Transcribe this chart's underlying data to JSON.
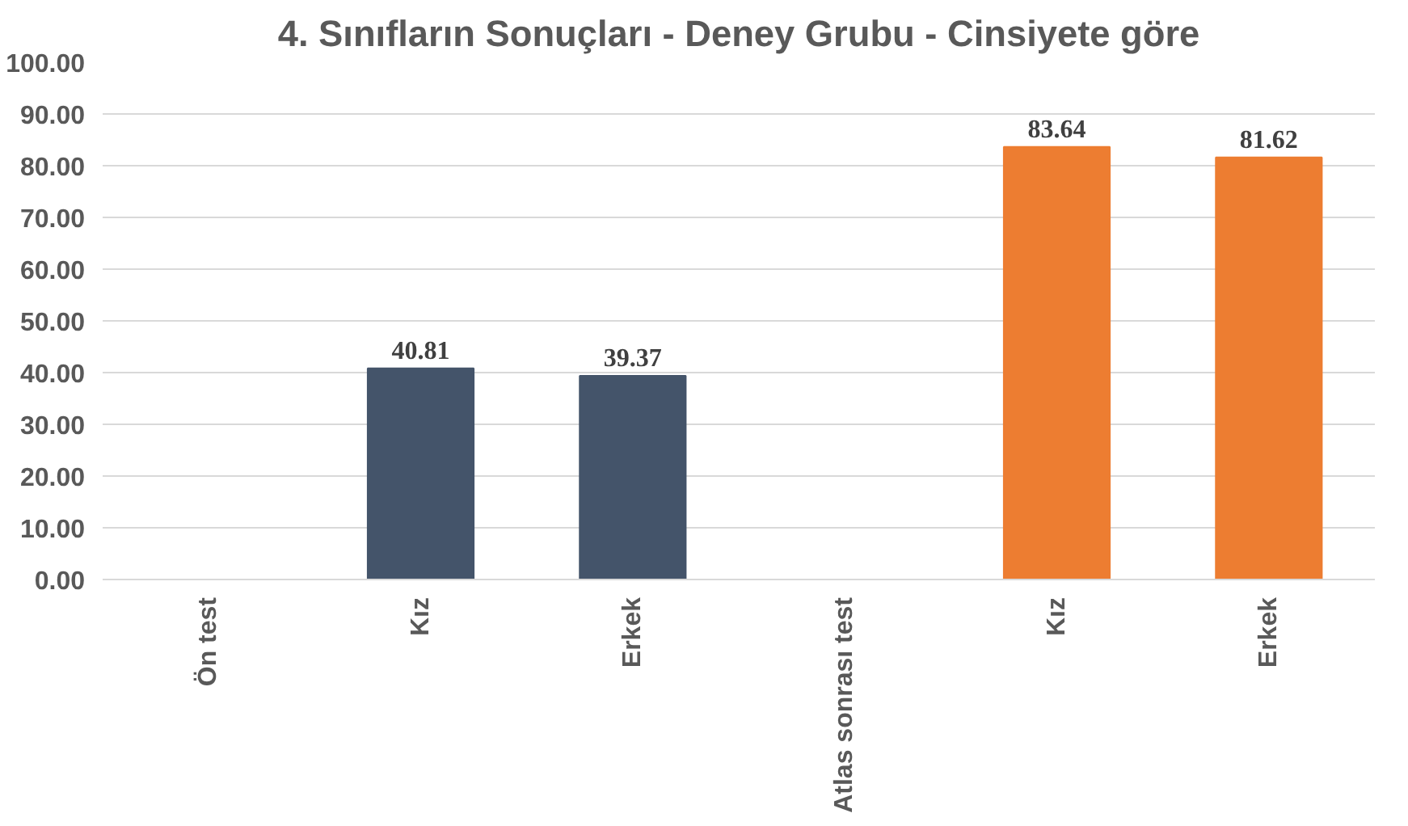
{
  "chart_data": {
    "type": "bar",
    "title": "4. Sınıfların Sonuçları - Deney Grubu - Cinsiyete göre",
    "categories": [
      "Ön test",
      "Kız",
      "Erkek",
      "Atlas sonrası test",
      "Kız",
      "Erkek"
    ],
    "values": [
      null,
      40.81,
      39.37,
      null,
      83.64,
      81.62
    ],
    "colors": [
      "#44546a",
      "#44546a",
      "#44546a",
      "#ed7d31",
      "#ed7d31",
      "#ed7d31"
    ],
    "ylim": [
      0,
      100
    ],
    "yticks": [
      {
        "value": 0,
        "label": "0.00"
      },
      {
        "value": 10,
        "label": "10.00"
      },
      {
        "value": 20,
        "label": "20.00"
      },
      {
        "value": 30,
        "label": "30.00"
      },
      {
        "value": 40,
        "label": "40.00"
      },
      {
        "value": 50,
        "label": "50.00"
      },
      {
        "value": 60,
        "label": "60.00"
      },
      {
        "value": 70,
        "label": "70.00"
      },
      {
        "value": 80,
        "label": "80.00"
      },
      {
        "value": 90,
        "label": "90.00"
      },
      {
        "value": 100,
        "label": "100.00"
      }
    ],
    "grid": "y",
    "data_labels": true
  }
}
